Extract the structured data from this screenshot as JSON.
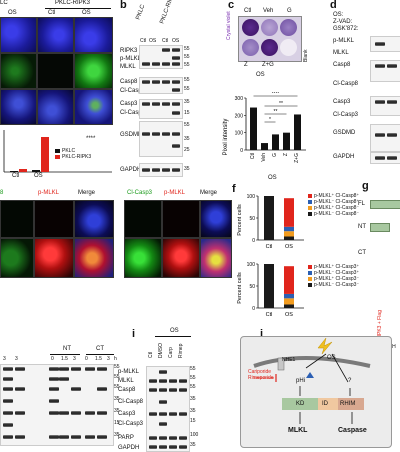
{
  "panel_a": {
    "col_headers": [
      "LC",
      "PKLC-RIPK3"
    ],
    "sub_headers": [
      "Ctl",
      "OS",
      "Ctl",
      "OS"
    ],
    "chart_data": {
      "type": "bar",
      "categories": [
        "Ctl",
        "OS"
      ],
      "series": [
        {
          "name": "PKLC",
          "values": [
            0.1,
            0.2
          ]
        },
        {
          "name": "PKLC-RIPK3",
          "values": [
            0.3,
            3.5
          ]
        }
      ],
      "significance": "****",
      "colors": {
        "PKLC": "#111111",
        "PKLC-RIPK3": "#e0251c"
      }
    }
  },
  "panel_b": {
    "label": "b",
    "lane_labels": [
      "PKLC",
      "PKLC-RIPK3"
    ],
    "sub_labels": [
      "Ctl",
      "OS",
      "Ctl",
      "OS"
    ],
    "rows": [
      "RIPK3",
      "p-MLKL",
      "MLKL",
      "Casp8",
      "Cl-Casp8",
      "Casp3",
      "Cl-Casp3",
      "GSDMD",
      "GAPDH"
    ],
    "mw": [
      "55",
      "55",
      "55",
      "55",
      "55",
      "35",
      "15",
      "55",
      "35",
      "25",
      "35"
    ]
  },
  "panel_c": {
    "label": "c",
    "well_labels": [
      "Ctl",
      "Veh",
      "G"
    ],
    "well_labels_2": [
      "Z",
      "Z+G"
    ],
    "group_label": "OS",
    "side_label": "Crystal violet",
    "blank_label": "Blank",
    "chart_data": {
      "type": "bar",
      "categories": [
        "Ctl",
        "Veh",
        "G",
        "Z",
        "Z+G"
      ],
      "values": [
        245,
        40,
        90,
        100,
        205
      ],
      "ylabel": "Pixel intensity",
      "ylim": [
        0,
        300
      ],
      "yticks": [
        "0",
        "100",
        "200",
        "300"
      ],
      "group_label": "OS",
      "significance": [
        "****",
        "**",
        "*",
        "**"
      ]
    }
  },
  "panel_d": {
    "label": "d",
    "conditions": [
      "OS:",
      "Z-VAD:",
      "GSK'872:"
    ],
    "rows": [
      "p-MLKL",
      "MLKL",
      "Casp8",
      "Cl-Casp8",
      "Casp3",
      "Cl-Casp3",
      "GSDMD",
      "GAPDH"
    ]
  },
  "panel_e": {
    "headers": [
      "Cl-Casp3",
      "p-MLKL",
      "Merge"
    ],
    "left_headers": [
      "p-MLKL",
      "Merge"
    ]
  },
  "panel_f": {
    "label": "f",
    "chart_top": {
      "type": "bar",
      "categories": [
        "Ctl",
        "OS"
      ],
      "ylabel": "Percent cells",
      "ylim": [
        0,
        100
      ],
      "yticks": [
        "0",
        "50",
        "100"
      ],
      "series": [
        {
          "name": "p-MLKL⁻ Cl-Casp8⁻",
          "values": [
            100,
            8
          ],
          "color": "#1a1a1a"
        },
        {
          "name": "p-MLKL⁺ Cl-Casp8⁻",
          "values": [
            0,
            12
          ],
          "color": "#f29c1f"
        },
        {
          "name": "p-MLKL⁻ Cl-Casp8⁺",
          "values": [
            0,
            10
          ],
          "color": "#2b5fb3"
        },
        {
          "name": "p-MLKL⁺ Cl-Casp8⁺",
          "values": [
            0,
            65
          ],
          "color": "#e0251c"
        }
      ]
    },
    "chart_bottom": {
      "type": "bar",
      "categories": [
        "Ctl",
        "OS"
      ],
      "ylabel": "Percent cells",
      "ylim": [
        0,
        100
      ],
      "yticks": [
        "0",
        "50",
        "100"
      ],
      "series": [
        {
          "name": "p-MLKL⁻ Cl-Casp3⁻",
          "values": [
            100,
            8
          ],
          "color": "#1a1a1a"
        },
        {
          "name": "p-MLKL⁺ Cl-Casp3⁻",
          "values": [
            0,
            14
          ],
          "color": "#f29c1f"
        },
        {
          "name": "p-MLKL⁻ Cl-Casp3⁺",
          "values": [
            0,
            10
          ],
          "color": "#2b5fb3"
        },
        {
          "name": "p-MLKL⁺ Cl-Casp3⁺",
          "values": [
            0,
            63
          ],
          "color": "#e0251c"
        }
      ]
    }
  },
  "panel_g": {
    "label": "g",
    "rows": [
      "FL",
      "NT",
      "CT"
    ],
    "side_label": "RIPK3 + Flag",
    "gapdh": "GAPDH"
  },
  "panel_h": {
    "groups": [
      "NT",
      "CT"
    ],
    "times": [
      "3",
      "3",
      "0",
      "1.5",
      "3",
      "0",
      "1.5",
      "3",
      "h"
    ],
    "mw": [
      "55",
      "55",
      "55",
      "35",
      "35",
      "15",
      "35"
    ]
  },
  "panel_i": {
    "label": "i",
    "group": "OS",
    "lanes": [
      "Ctl",
      "DMSO",
      "Carp",
      "Rimep"
    ],
    "rows": [
      "p-MLKL",
      "MLKL",
      "Casp8",
      "Cl-Casp8",
      "Casp3",
      "Cl-Casp3",
      "PARP",
      "GAPDH"
    ],
    "mw": [
      "55",
      "55",
      "55",
      "35",
      "35",
      "15",
      "100",
      "35"
    ]
  },
  "panel_j": {
    "label": "j",
    "stimulus": "OS",
    "channel": "NHE1",
    "inhibitors": "Cariporide\nRimeporide",
    "ph": "pHi",
    "unknown": "?",
    "domains": [
      "KD",
      "ID",
      "RHIM"
    ],
    "outputs": [
      "MLKL",
      "Caspase"
    ]
  }
}
